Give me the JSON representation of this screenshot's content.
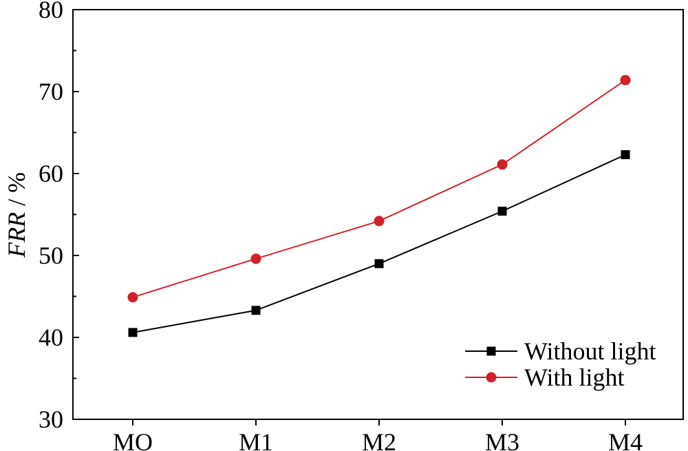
{
  "chart_data": {
    "type": "line",
    "categories": [
      "MO",
      "M1",
      "M2",
      "M3",
      "M4"
    ],
    "series": [
      {
        "name": "Without light",
        "values": [
          40.6,
          43.3,
          49.0,
          55.4,
          62.3
        ],
        "color": "#000000",
        "marker": "square"
      },
      {
        "name": "With light",
        "values": [
          44.9,
          49.6,
          54.2,
          61.1,
          71.4
        ],
        "color": "#d0222a",
        "marker": "circle"
      }
    ],
    "ylabel_italic": "FRR",
    "ylabel_rest": " / %",
    "ylim": [
      30,
      80
    ],
    "yticks": [
      "30",
      "40",
      "50",
      "60",
      "70",
      "80"
    ],
    "legend_position": "bottom-right",
    "grid": false
  }
}
